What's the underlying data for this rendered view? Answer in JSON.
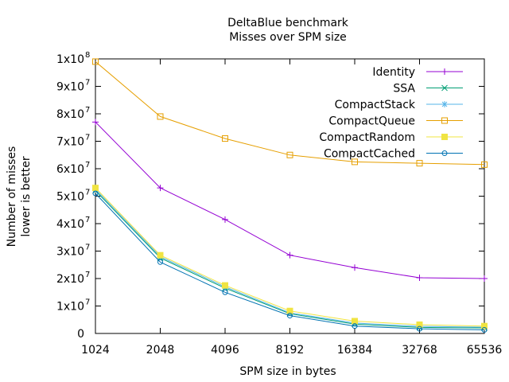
{
  "chart_data": {
    "type": "line",
    "title": "DeltaBlue benchmark",
    "subtitle": "Misses over SPM size",
    "xlabel": "SPM size in bytes",
    "ylabel_line1": "Number of misses",
    "ylabel_line2": "lower is better",
    "x_scale": "log2",
    "ylim": [
      0,
      100000000
    ],
    "x": [
      1024,
      2048,
      4096,
      8192,
      16384,
      32768,
      65536
    ],
    "x_tick_labels": [
      "1024",
      "2048",
      "4096",
      "8192",
      "16384",
      "32768",
      "65536"
    ],
    "y_ticks": [
      {
        "value": 0,
        "mantissa": "0",
        "exp": ""
      },
      {
        "value": 10000000,
        "mantissa": "1x10",
        "exp": "7"
      },
      {
        "value": 20000000,
        "mantissa": "2x10",
        "exp": "7"
      },
      {
        "value": 30000000,
        "mantissa": "3x10",
        "exp": "7"
      },
      {
        "value": 40000000,
        "mantissa": "4x10",
        "exp": "7"
      },
      {
        "value": 50000000,
        "mantissa": "5x10",
        "exp": "7"
      },
      {
        "value": 60000000,
        "mantissa": "6x10",
        "exp": "7"
      },
      {
        "value": 70000000,
        "mantissa": "7x10",
        "exp": "7"
      },
      {
        "value": 80000000,
        "mantissa": "8x10",
        "exp": "7"
      },
      {
        "value": 90000000,
        "mantissa": "9x10",
        "exp": "7"
      },
      {
        "value": 100000000,
        "mantissa": "1x10",
        "exp": "8"
      }
    ],
    "grid": false,
    "legend_position": "top-right",
    "series": [
      {
        "name": "Identity",
        "color": "#9400d3",
        "marker": "plus",
        "values": [
          77000000,
          53000000,
          41500000,
          28500000,
          24000000,
          20300000,
          20000000
        ]
      },
      {
        "name": "SSA",
        "color": "#009e73",
        "marker": "cross",
        "values": [
          52000000,
          27500000,
          16500000,
          7200000,
          3400000,
          2200000,
          2000000
        ]
      },
      {
        "name": "CompactStack",
        "color": "#56b4e9",
        "marker": "star",
        "values": [
          52500000,
          28000000,
          17000000,
          7500000,
          3800000,
          2600000,
          2300000
        ]
      },
      {
        "name": "CompactQueue",
        "color": "#e69f00",
        "marker": "square",
        "values": [
          99000000,
          79000000,
          71000000,
          65000000,
          62500000,
          62000000,
          61500000
        ]
      },
      {
        "name": "CompactRandom",
        "color": "#f0e442",
        "marker": "filled-square",
        "values": [
          53000000,
          28500000,
          17500000,
          8200000,
          4500000,
          3200000,
          2700000
        ]
      },
      {
        "name": "CompactCached",
        "color": "#0072b2",
        "marker": "circle",
        "values": [
          51000000,
          26000000,
          15000000,
          6500000,
          2700000,
          1700000,
          1300000
        ]
      }
    ]
  }
}
